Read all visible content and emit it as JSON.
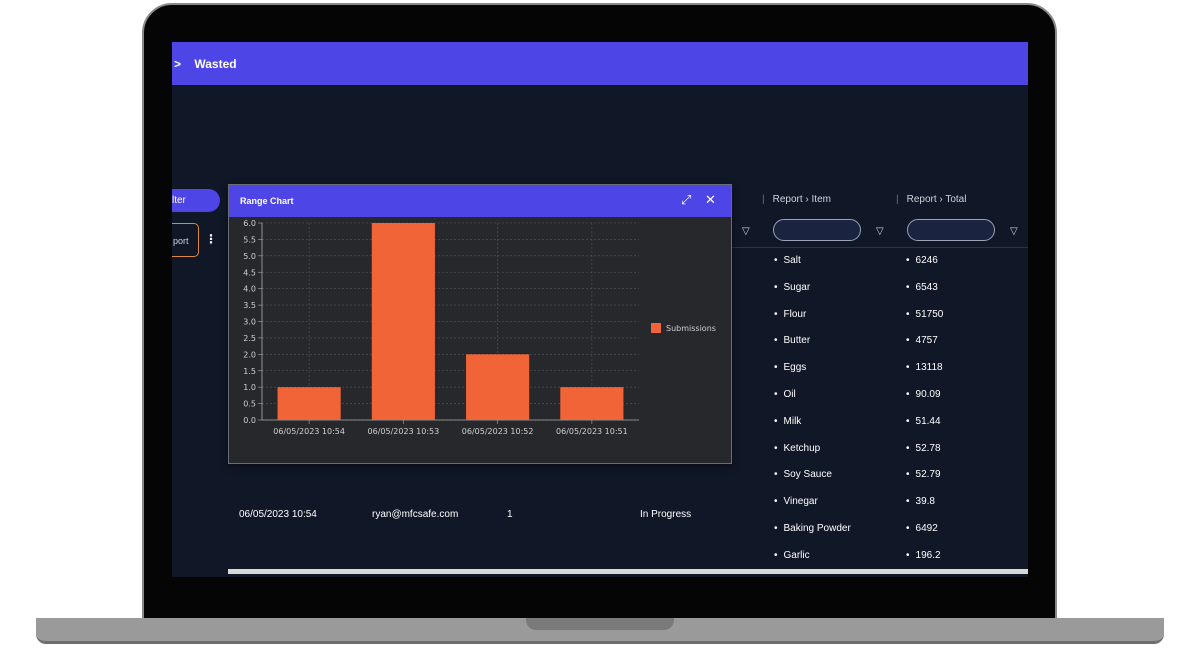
{
  "breadcrumb": {
    "separator": ">",
    "current": "Wasted"
  },
  "left_controls": {
    "filter_label": "lter",
    "report_label": "port",
    "more_icon": "⋮"
  },
  "columns": [
    {
      "label": "Report › Item"
    },
    {
      "label": "Report › Total"
    }
  ],
  "items": [
    "Salt",
    "Sugar",
    "Flour",
    "Butter",
    "Eggs",
    "Oil",
    "Milk",
    "Ketchup",
    "Soy Sauce",
    "Vinegar",
    "Baking Powder",
    "Garlic"
  ],
  "totals": [
    "6246",
    "6543",
    "51750",
    "4757",
    "13118",
    "90.09",
    "51.44",
    "52.78",
    "52.79",
    "39.8",
    "6492",
    "196.2"
  ],
  "row": {
    "date": "06/05/2023 10:54",
    "email": "ryan@mfcsafe.com",
    "count": "1",
    "status": "In Progress"
  },
  "modal": {
    "title": "Range Chart",
    "expand_icon": "⤢",
    "close_icon": "✕"
  },
  "colors": {
    "accent": "#4d45e5",
    "bar": "#f06437",
    "background": "#101727",
    "panel": "#27282b"
  },
  "chart_data": {
    "type": "bar",
    "categories": [
      "06/05/2023 10:54",
      "06/05/2023 10:53",
      "06/05/2023 10:52",
      "06/05/2023 10:51"
    ],
    "series": [
      {
        "name": "Submissions",
        "values": [
          1,
          6,
          2,
          1
        ]
      }
    ],
    "ylim": [
      0,
      6
    ],
    "yticks": [
      "0.0",
      "0.5",
      "1.0",
      "1.5",
      "2.0",
      "2.5",
      "3.0",
      "3.5",
      "4.0",
      "4.5",
      "5.0",
      "5.5",
      "6.0"
    ],
    "grid": true,
    "legend": "right"
  }
}
